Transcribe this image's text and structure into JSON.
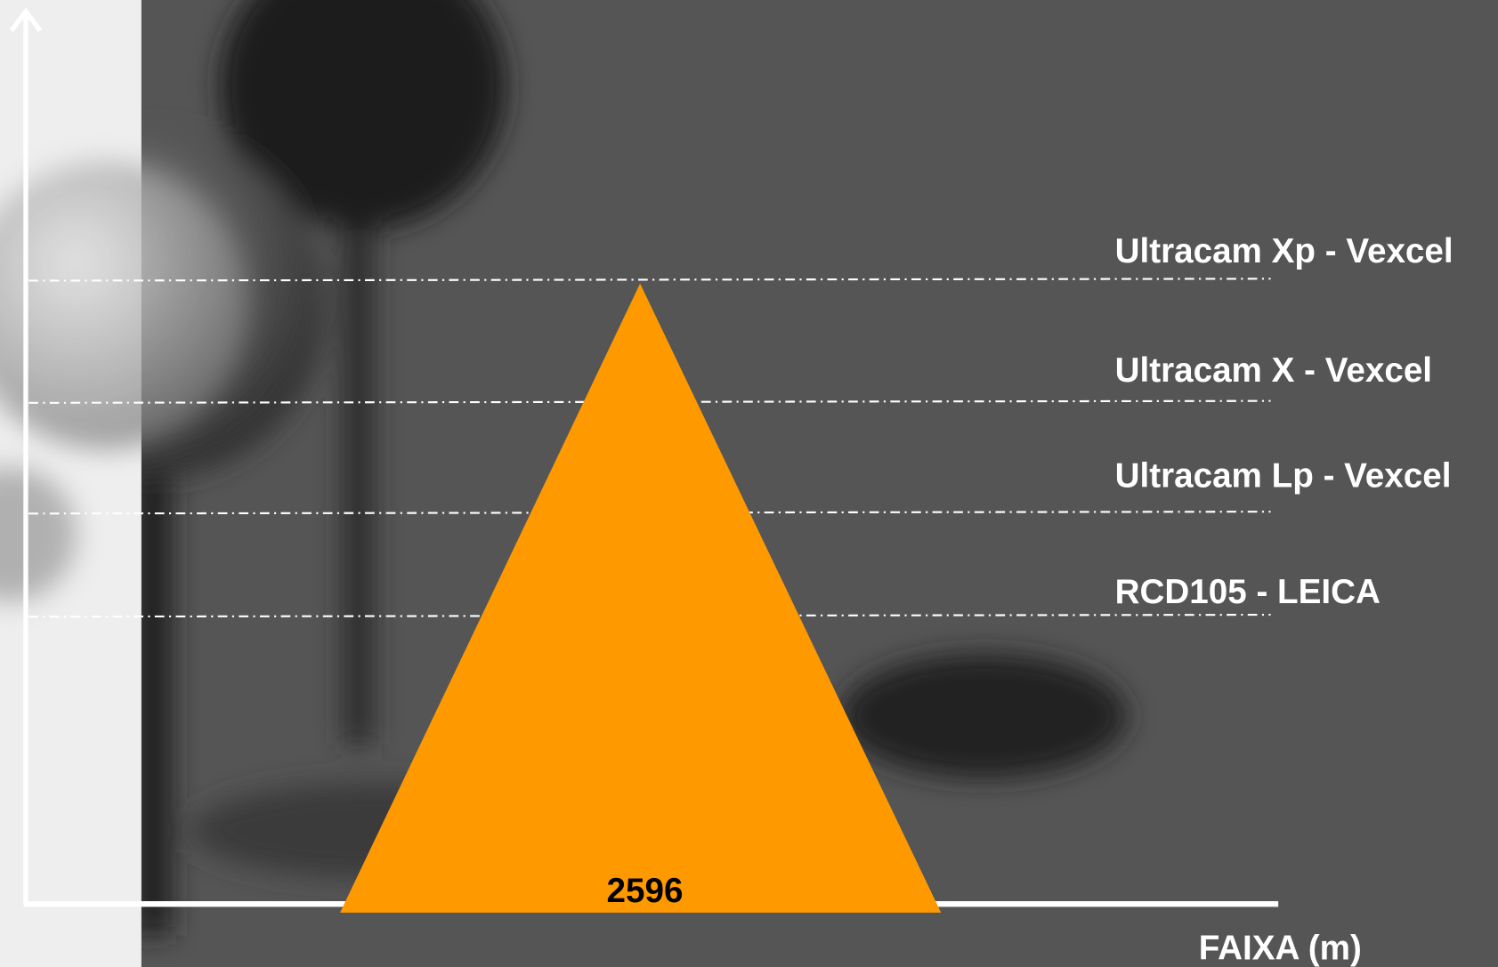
{
  "labels": [
    "Ultracam Xp - Vexcel",
    "Ultracam X - Vexcel",
    "Ultracam Lp - Vexcel",
    "RCD105 - LEICA"
  ],
  "value_label": "2596",
  "axis_label": "FAIXA (m)"
}
